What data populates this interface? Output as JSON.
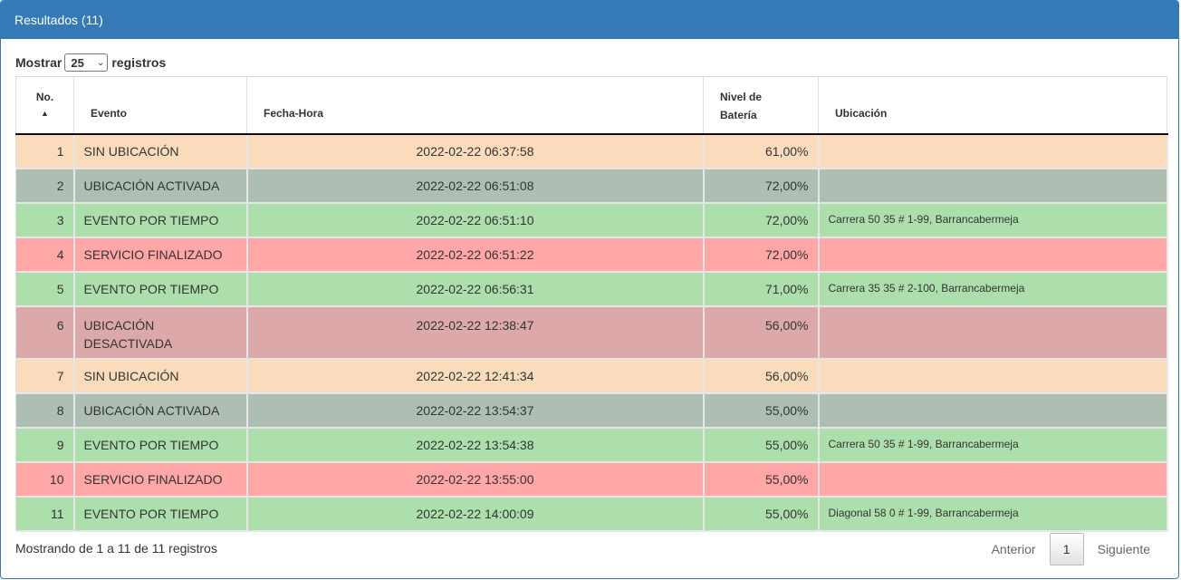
{
  "panel": {
    "title": "Resultados (11)"
  },
  "length": {
    "prefix": "Mostrar",
    "value": "25",
    "suffix": "registros"
  },
  "table": {
    "headers": {
      "no": "No.",
      "evento": "Evento",
      "fecha": "Fecha-Hora",
      "bateria_1": "Nivel de",
      "bateria_2": "Batería",
      "ubicacion": "Ubicación"
    },
    "rows": [
      {
        "no": "1",
        "evento": "SIN UBICACIÓN",
        "fecha": "2022-02-22 06:37:58",
        "bateria": "61,00%",
        "ubicacion": "",
        "status": "orange"
      },
      {
        "no": "2",
        "evento": "UBICACIÓN ACTIVADA",
        "fecha": "2022-02-22 06:51:08",
        "bateria": "72,00%",
        "ubicacion": "",
        "status": "gray"
      },
      {
        "no": "3",
        "evento": "EVENTO POR TIEMPO",
        "fecha": "2022-02-22 06:51:10",
        "bateria": "72,00%",
        "ubicacion": "Carrera 50 35 # 1-99, Barrancabermeja",
        "status": "green"
      },
      {
        "no": "4",
        "evento": "SERVICIO FINALIZADO",
        "fecha": "2022-02-22 06:51:22",
        "bateria": "72,00%",
        "ubicacion": "",
        "status": "red"
      },
      {
        "no": "5",
        "evento": "EVENTO POR TIEMPO",
        "fecha": "2022-02-22 06:56:31",
        "bateria": "71,00%",
        "ubicacion": "Carrera 35 35 # 2-100, Barrancabermeja",
        "status": "green"
      },
      {
        "no": "6",
        "evento": "UBICACIÓN DESACTIVADA",
        "fecha": "2022-02-22 12:38:47",
        "bateria": "56,00%",
        "ubicacion": "",
        "status": "rose"
      },
      {
        "no": "7",
        "evento": "SIN UBICACIÓN",
        "fecha": "2022-02-22 12:41:34",
        "bateria": "56,00%",
        "ubicacion": "",
        "status": "orange"
      },
      {
        "no": "8",
        "evento": "UBICACIÓN ACTIVADA",
        "fecha": "2022-02-22 13:54:37",
        "bateria": "55,00%",
        "ubicacion": "",
        "status": "gray"
      },
      {
        "no": "9",
        "evento": "EVENTO POR TIEMPO",
        "fecha": "2022-02-22 13:54:38",
        "bateria": "55,00%",
        "ubicacion": "Carrera 50 35 # 1-99, Barrancabermeja",
        "status": "green"
      },
      {
        "no": "10",
        "evento": "SERVICIO FINALIZADO",
        "fecha": "2022-02-22 13:55:00",
        "bateria": "55,00%",
        "ubicacion": "",
        "status": "red"
      },
      {
        "no": "11",
        "evento": "EVENTO POR TIEMPO",
        "fecha": "2022-02-22 14:00:09",
        "bateria": "55,00%",
        "ubicacion": "Diagonal 58 0 # 1-99, Barrancabermeja",
        "status": "green"
      }
    ]
  },
  "footer": {
    "info": "Mostrando de 1 a 11 de 11 registros"
  },
  "pagination": {
    "prev": "Anterior",
    "current": "1",
    "next": "Siguiente"
  },
  "colors": {
    "panel_header": "#337ab7",
    "orange": "#fadcbd",
    "gray": "#aebeb2",
    "green": "#addfad",
    "red": "#ffa6a6",
    "rose": "#dca8aa"
  }
}
